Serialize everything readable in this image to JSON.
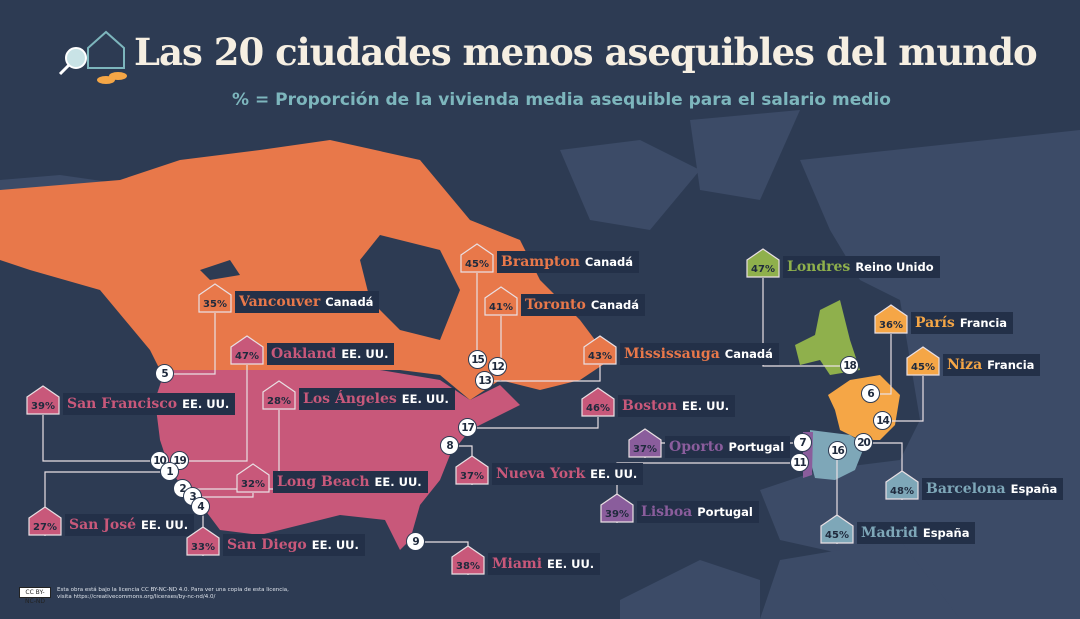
{
  "header": {
    "title": "Las 20 ciudades menos asequibles del mundo",
    "subtitle": "% = Proporción de la vivienda media asequible para el salario medio"
  },
  "logo": {
    "icon": "house-magnifier-coins-icon"
  },
  "colors": {
    "background": "#2d3b53",
    "land": "#3c4b67",
    "canada": "#e8784a",
    "usa": "#c8587a",
    "uk": "#8fb04c",
    "france": "#f5a646",
    "spain": "#7ea7b8",
    "portugal": "#8a5d9c",
    "title": "#f6efe2",
    "subtitle": "#7db6bd"
  },
  "cities": [
    {
      "rank": "15",
      "name": "Brampton",
      "country": "Canadá",
      "pct": "45%",
      "color": "#e8784a"
    },
    {
      "rank": "12",
      "name": "Toronto",
      "country": "Canadá",
      "pct": "41%",
      "color": "#e8784a"
    },
    {
      "rank": "5",
      "name": "Vancouver",
      "country": "Canadá",
      "pct": "35%",
      "color": "#e8784a"
    },
    {
      "rank": "19",
      "name": "Oakland",
      "country": "EE. UU.",
      "pct": "47%",
      "color": "#c8587a"
    },
    {
      "rank": "13",
      "name": "Mississauga",
      "country": "Canadá",
      "pct": "43%",
      "color": "#e8784a"
    },
    {
      "rank": "10",
      "name": "San Francisco",
      "country": "EE. UU.",
      "pct": "39%",
      "color": "#c8587a"
    },
    {
      "rank": "2",
      "name": "Los Ángeles",
      "country": "EE. UU.",
      "pct": "28%",
      "color": "#c8587a"
    },
    {
      "rank": "17",
      "name": "Boston",
      "country": "EE. UU.",
      "pct": "46%",
      "color": "#c8587a"
    },
    {
      "rank": "7",
      "name": "Oporto",
      "country": "Portugal",
      "pct": "37%",
      "color": "#8a5d9c"
    },
    {
      "rank": "8",
      "name": "Nueva York",
      "country": "EE. UU.",
      "pct": "37%",
      "color": "#c8587a"
    },
    {
      "rank": "3",
      "name": "Long Beach",
      "country": "EE. UU.",
      "pct": "32%",
      "color": "#c8587a"
    },
    {
      "rank": "11",
      "name": "Lisboa",
      "country": "Portugal",
      "pct": "39%",
      "color": "#8a5d9c"
    },
    {
      "rank": "1",
      "name": "San José",
      "country": "EE. UU.",
      "pct": "27%",
      "color": "#c8587a"
    },
    {
      "rank": "4",
      "name": "San Diego",
      "country": "EE. UU.",
      "pct": "33%",
      "color": "#c8587a"
    },
    {
      "rank": "9",
      "name": "Miami",
      "country": "EE. UU.",
      "pct": "38%",
      "color": "#c8587a"
    },
    {
      "rank": "18",
      "name": "Londres",
      "country": "Reino Unido",
      "pct": "47%",
      "color": "#8fb04c"
    },
    {
      "rank": "6",
      "name": "París",
      "country": "Francia",
      "pct": "36%",
      "color": "#f5a646"
    },
    {
      "rank": "14",
      "name": "Niza",
      "country": "Francia",
      "pct": "45%",
      "color": "#f5a646"
    },
    {
      "rank": "20",
      "name": "Barcelona",
      "country": "España",
      "pct": "48%",
      "color": "#7ea7b8"
    },
    {
      "rank": "16",
      "name": "Madrid",
      "country": "España",
      "pct": "45%",
      "color": "#7ea7b8"
    }
  ],
  "license": {
    "badge": "CC BY-NC-ND",
    "text": "Esta obra está bajo la licencia CC BY-NC-ND 4.0. Para ver una copia de esta licencia, visita https://creativecommons.org/licenses/by-nc-nd/4.0/"
  }
}
